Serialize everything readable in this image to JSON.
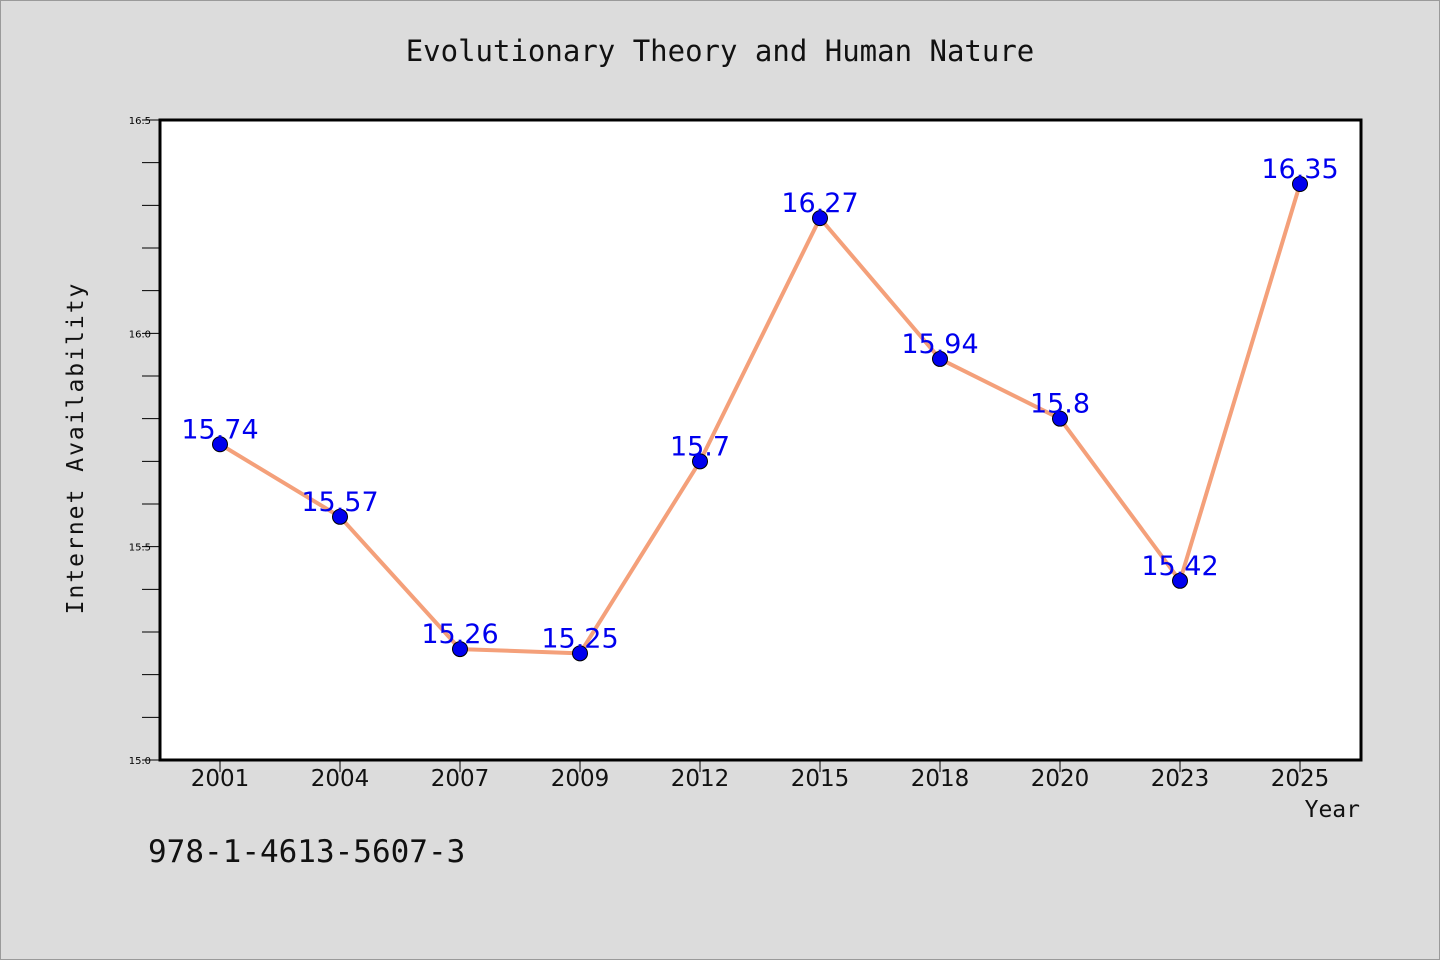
{
  "chart_data": {
    "type": "line",
    "title": "Evolutionary Theory and Human Nature",
    "xlabel": "Year",
    "ylabel": "Internet Availability",
    "categories": [
      "2001",
      "2004",
      "2007",
      "2009",
      "2012",
      "2015",
      "2018",
      "2020",
      "2023",
      "2025"
    ],
    "series": [
      {
        "values": [
          15.74,
          15.57,
          15.26,
          15.25,
          15.7,
          16.27,
          15.94,
          15.8,
          15.42,
          16.35
        ],
        "labels": [
          "15.74",
          "15.57",
          "15.26",
          "15.25",
          "15.7",
          "16.27",
          "15.94",
          "15.8",
          "15.42",
          "16.35"
        ],
        "line_color": "#f4a07a",
        "marker_color": "#0000ee",
        "label_color": "#0000ee"
      }
    ],
    "ylim": [
      15.0,
      16.5
    ],
    "yticks": [
      "15.0",
      "15.5",
      "16.0",
      "16.5"
    ],
    "grid": false,
    "legend": "none"
  },
  "footer": {
    "isbn": "978-1-4613-5607-3"
  },
  "colors": {
    "background": "#dcdcdc",
    "plot_background": "#ffffff",
    "axis": "#000000"
  }
}
